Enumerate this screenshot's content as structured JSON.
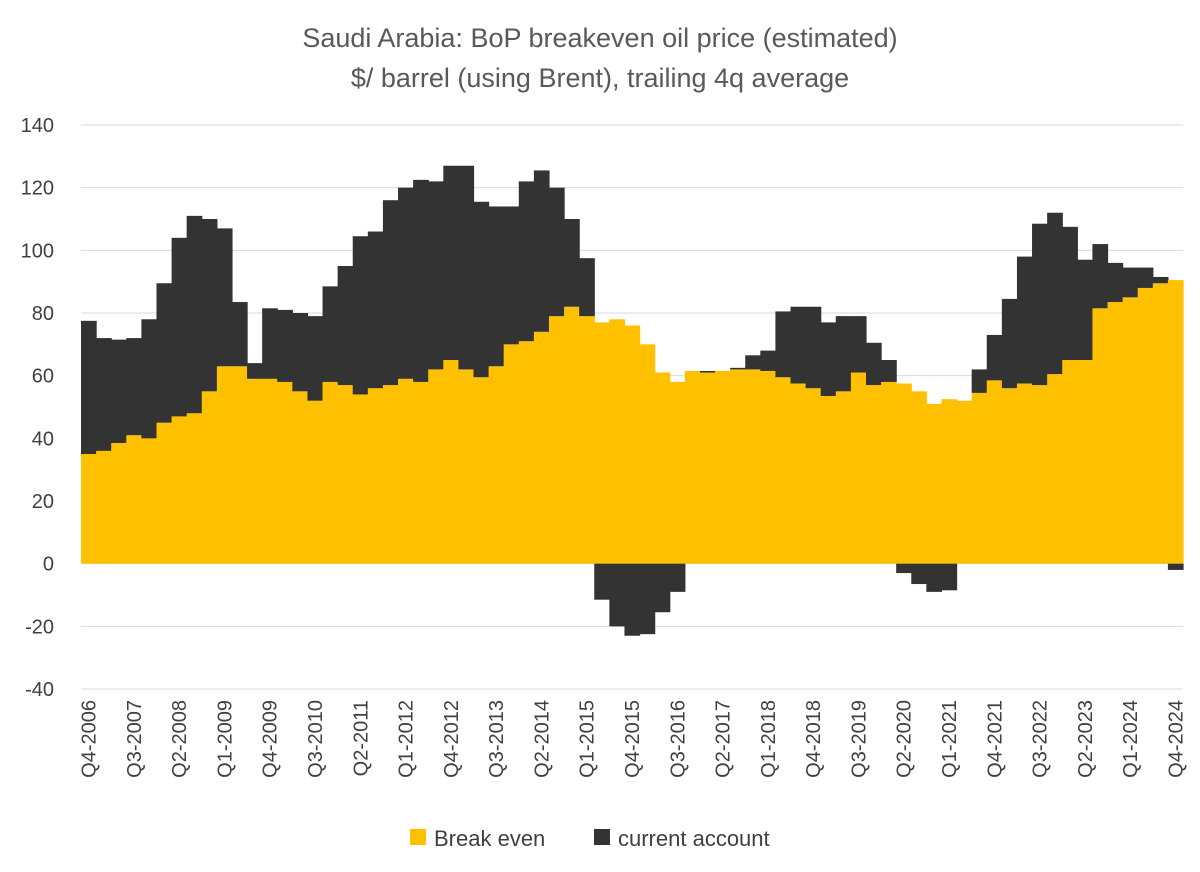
{
  "chart_data": {
    "type": "area",
    "title": "Saudi Arabia: BoP breakeven oil  price (estimated)",
    "subtitle": "$/ barrel (using Brent), trailing 4q average",
    "xlabel": "",
    "ylabel": "",
    "ylim": [
      -40,
      140
    ],
    "yticks": [
      140,
      120,
      100,
      80,
      60,
      40,
      20,
      0,
      -20,
      -40
    ],
    "grid": true,
    "stacked": true,
    "legend_position": "bottom",
    "x_tick_labels": [
      "Q4-2006",
      "Q3-2007",
      "Q2-2008",
      "Q1-2009",
      "Q4-2009",
      "Q3-2010",
      "Q2-2011",
      "Q1-2012",
      "Q4-2012",
      "Q3-2013",
      "Q2-2014",
      "Q1-2015",
      "Q4-2015",
      "Q3-2016",
      "Q2-2017",
      "Q1-2018",
      "Q4-2018",
      "Q3-2019",
      "Q2-2020",
      "Q1-2021",
      "Q4-2021",
      "Q3-2022",
      "Q2-2023",
      "Q1-2024",
      "Q4-2024"
    ],
    "categories": [
      "Q4-2006",
      "Q1-2007",
      "Q2-2007",
      "Q3-2007",
      "Q4-2007",
      "Q1-2008",
      "Q2-2008",
      "Q3-2008",
      "Q4-2008",
      "Q1-2009",
      "Q2-2009",
      "Q3-2009",
      "Q4-2009",
      "Q1-2010",
      "Q2-2010",
      "Q3-2010",
      "Q4-2010",
      "Q1-2011",
      "Q2-2011",
      "Q3-2011",
      "Q4-2011",
      "Q1-2012",
      "Q2-2012",
      "Q3-2012",
      "Q4-2012",
      "Q1-2013",
      "Q2-2013",
      "Q3-2013",
      "Q4-2013",
      "Q1-2014",
      "Q2-2014",
      "Q3-2014",
      "Q4-2014",
      "Q1-2015",
      "Q2-2015",
      "Q3-2015",
      "Q4-2015",
      "Q1-2016",
      "Q2-2016",
      "Q3-2016",
      "Q4-2016",
      "Q1-2017",
      "Q2-2017",
      "Q3-2017",
      "Q4-2017",
      "Q1-2018",
      "Q2-2018",
      "Q3-2018",
      "Q4-2018",
      "Q1-2019",
      "Q2-2019",
      "Q3-2019",
      "Q4-2019",
      "Q1-2020",
      "Q2-2020",
      "Q3-2020",
      "Q4-2020",
      "Q1-2021",
      "Q2-2021",
      "Q3-2021",
      "Q4-2021",
      "Q1-2022",
      "Q2-2022",
      "Q3-2022",
      "Q4-2022",
      "Q1-2023",
      "Q2-2023",
      "Q3-2023",
      "Q4-2023",
      "Q1-2024",
      "Q2-2024",
      "Q3-2024",
      "Q4-2024"
    ],
    "series": [
      {
        "name": "Break even",
        "color": "#FFC000",
        "values": [
          35,
          36,
          38.5,
          41,
          40,
          45,
          47,
          48,
          55,
          63,
          63,
          59,
          59,
          58,
          55,
          52,
          58,
          57,
          54,
          56,
          57,
          59,
          58,
          62,
          65,
          62,
          59.5,
          63,
          70,
          71,
          74,
          79,
          82,
          79,
          77,
          78,
          76,
          70,
          61,
          58,
          61.5,
          61,
          61.5,
          62,
          62,
          61.5,
          59.5,
          57.5,
          56,
          53.5,
          55,
          61,
          57,
          58,
          57.5,
          55,
          51,
          52.5,
          52,
          54.5,
          58.5,
          56,
          57.5,
          57,
          60.5,
          65,
          65,
          81.5,
          83.5,
          85,
          88,
          89.5,
          90.5
        ]
      },
      {
        "name": "current account",
        "color": "#333333",
        "values": [
          42.5,
          36,
          33,
          31,
          38,
          44.5,
          57,
          63,
          55,
          44,
          20.5,
          5,
          22.5,
          23,
          25,
          27,
          30.5,
          38,
          50.5,
          50,
          59,
          61,
          64.5,
          60,
          62,
          65,
          56,
          51,
          44,
          51,
          51.5,
          41,
          28,
          18.5,
          -11.5,
          -20,
          -23,
          -22.5,
          -15.5,
          -9,
          0,
          0.5,
          0,
          0.5,
          4.5,
          6.5,
          21,
          24.5,
          26,
          23.5,
          24,
          18,
          13.5,
          7,
          -3,
          -6.5,
          -9,
          -8.5,
          0,
          7.5,
          14.5,
          28.5,
          40.5,
          51.5,
          51.5,
          42.5,
          32,
          20.5,
          12.5,
          9.5,
          6.5,
          2,
          -2
        ]
      }
    ]
  }
}
